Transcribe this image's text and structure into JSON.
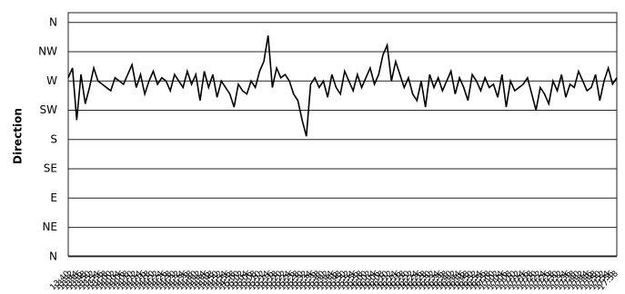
{
  "chart_data": {
    "type": "line",
    "y_label": "Direction",
    "categories": [
      "13:40",
      "13:42",
      "13:44",
      "13:46",
      "13:48",
      "13:50",
      "13:52",
      "13:54",
      "13:56",
      "13:58",
      "14:00",
      "14:02",
      "14:04",
      "14:06",
      "14:08",
      "14:10",
      "14:12",
      "14:14",
      "14:16",
      "14:18",
      "14:20",
      "14:22",
      "14:24",
      "14:26",
      "14:28",
      "14:30",
      "14:32",
      "14:34",
      "14:36",
      "14:38",
      "14:40",
      "14:42",
      "14:44",
      "14:46",
      "14:48",
      "14:50",
      "14:52",
      "14:54",
      "14:56",
      "14:58",
      "15:00",
      "15:02",
      "15:04",
      "15:06",
      "15:08",
      "15:10",
      "15:12",
      "15:14",
      "15:16",
      "15:18",
      "15:20",
      "15:22",
      "15:24",
      "15:26",
      "15:28",
      "15:30",
      "15:32",
      "15:34",
      "15:36",
      "15:38",
      "15:40",
      "15:42",
      "15:44",
      "15:46",
      "15:48",
      "15:50",
      "15:52",
      "15:54",
      "15:56",
      "15:58",
      "16:00",
      "16:02",
      "16:04",
      "16:06",
      "16:08",
      "16:10",
      "16:12",
      "16:14",
      "16:16",
      "16:18",
      "16:20",
      "16:22",
      "16:24",
      "16:26",
      "16:28",
      "16:30",
      "16:32",
      "16:34",
      "16:36",
      "16:38",
      "16:40",
      "16:42",
      "16:44",
      "16:46",
      "16:48",
      "16:50",
      "16:52",
      "16:54",
      "16:56",
      "16:58",
      "17:00",
      "17:02",
      "17:04",
      "17:06",
      "17:08",
      "17:10",
      "17:12",
      "17:14",
      "17:16",
      "17:18",
      "17:20",
      "17:22",
      "17:24",
      "17:26",
      "17:28",
      "17:30",
      "17:32",
      "17:34",
      "17:36",
      "17:38",
      "17:40",
      "17:42",
      "17:44",
      "17:46",
      "17:48",
      "17:50",
      "17:52",
      "17:54",
      "17:56",
      "17:58"
    ],
    "values": [
      275,
      290,
      210,
      280,
      235,
      260,
      290,
      270,
      265,
      260,
      255,
      275,
      270,
      265,
      280,
      295,
      260,
      280,
      250,
      270,
      285,
      265,
      275,
      270,
      255,
      280,
      270,
      260,
      285,
      265,
      280,
      240,
      285,
      260,
      280,
      245,
      270,
      260,
      250,
      230,
      265,
      255,
      250,
      270,
      260,
      285,
      300,
      340,
      260,
      290,
      275,
      280,
      270,
      250,
      240,
      210,
      185,
      265,
      275,
      260,
      270,
      245,
      280,
      260,
      250,
      285,
      270,
      255,
      280,
      260,
      275,
      290,
      265,
      280,
      310,
      325,
      270,
      300,
      280,
      260,
      275,
      250,
      240,
      270,
      230,
      280,
      260,
      275,
      255,
      270,
      285,
      250,
      275,
      260,
      240,
      280,
      270,
      255,
      275,
      260,
      265,
      245,
      280,
      230,
      270,
      255,
      260,
      265,
      275,
      250,
      225,
      260,
      250,
      235,
      270,
      255,
      280,
      245,
      265,
      260,
      285,
      270,
      255,
      260,
      280,
      240,
      270,
      290,
      265,
      275
    ],
    "color": "#000000",
    "ylim": [
      -10,
      375
    ],
    "yticks": [
      {
        "value": 0,
        "label": "N"
      },
      {
        "value": 45,
        "label": "NE"
      },
      {
        "value": 90,
        "label": "E"
      },
      {
        "value": 135,
        "label": "SE"
      },
      {
        "value": 180,
        "label": "S"
      },
      {
        "value": 225,
        "label": "SW"
      },
      {
        "value": 270,
        "label": "W"
      },
      {
        "value": 315,
        "label": "NW"
      },
      {
        "value": 360,
        "label": "N"
      }
    ],
    "grid": true
  }
}
